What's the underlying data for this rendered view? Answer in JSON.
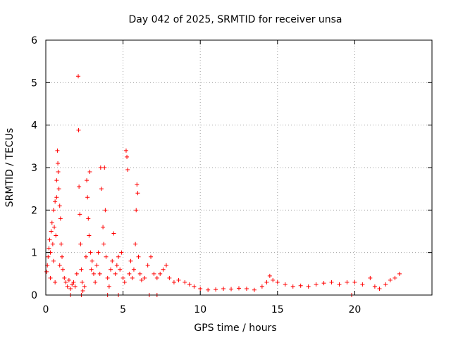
{
  "chart_data": {
    "type": "scatter",
    "title": "Day 042 of 2025, SRMTID for receiver unsa",
    "xlabel": "GPS time / hours",
    "ylabel": "SRMTID / TECUs",
    "xlim": [
      0,
      25
    ],
    "ylim": [
      0,
      6
    ],
    "xticks": [
      0,
      5,
      10,
      15,
      20
    ],
    "yticks": [
      0,
      1,
      2,
      3,
      4,
      5,
      6
    ],
    "grid": true,
    "marker": "+",
    "color": "#ff0000",
    "series": [
      {
        "name": "SRMTID",
        "points": [
          [
            0.05,
            0.55
          ],
          [
            0.1,
            0.7
          ],
          [
            0.15,
            0.9
          ],
          [
            0.2,
            1.1
          ],
          [
            0.25,
            1.3
          ],
          [
            0.3,
            1.0
          ],
          [
            0.35,
            1.5
          ],
          [
            0.4,
            1.7
          ],
          [
            0.45,
            1.2
          ],
          [
            0.5,
            2.0
          ],
          [
            0.55,
            1.6
          ],
          [
            0.6,
            2.2
          ],
          [
            0.65,
            1.4
          ],
          [
            0.7,
            2.3
          ],
          [
            0.7,
            2.7
          ],
          [
            0.75,
            3.4
          ],
          [
            0.78,
            3.1
          ],
          [
            0.8,
            2.9
          ],
          [
            0.85,
            2.5
          ],
          [
            0.9,
            2.1
          ],
          [
            0.95,
            1.8
          ],
          [
            1.0,
            1.2
          ],
          [
            1.05,
            0.9
          ],
          [
            1.1,
            0.6
          ],
          [
            0.3,
            0.4
          ],
          [
            0.5,
            0.8
          ],
          [
            0.6,
            0.3
          ],
          [
            0.9,
            0.7
          ],
          [
            1.2,
            0.4
          ],
          [
            1.3,
            0.3
          ],
          [
            1.4,
            0.2
          ],
          [
            1.5,
            0.35
          ],
          [
            1.6,
            0.15
          ],
          [
            1.7,
            0.25
          ],
          [
            1.8,
            0.3
          ],
          [
            1.9,
            0.2
          ],
          [
            2.0,
            0.5
          ],
          [
            2.1,
            5.15
          ],
          [
            2.12,
            3.88
          ],
          [
            2.15,
            2.55
          ],
          [
            2.2,
            1.9
          ],
          [
            2.25,
            1.2
          ],
          [
            2.3,
            0.6
          ],
          [
            2.35,
            0.3
          ],
          [
            2.4,
            0.1
          ],
          [
            2.5,
            0.2
          ],
          [
            2.6,
            0.9
          ],
          [
            2.65,
            2.7
          ],
          [
            2.7,
            2.3
          ],
          [
            2.75,
            1.8
          ],
          [
            2.8,
            1.4
          ],
          [
            2.85,
            2.9
          ],
          [
            2.9,
            1.0
          ],
          [
            2.95,
            0.6
          ],
          [
            3.0,
            0.8
          ],
          [
            3.1,
            0.5
          ],
          [
            3.2,
            0.3
          ],
          [
            3.3,
            0.7
          ],
          [
            3.4,
            1.0
          ],
          [
            3.5,
            0.5
          ],
          [
            3.55,
            3.0
          ],
          [
            3.6,
            2.5
          ],
          [
            3.7,
            1.6
          ],
          [
            3.75,
            1.2
          ],
          [
            3.8,
            3.0
          ],
          [
            3.85,
            2.0
          ],
          [
            3.9,
            0.9
          ],
          [
            4.0,
            0.4
          ],
          [
            4.1,
            0.2
          ],
          [
            4.2,
            0.6
          ],
          [
            4.3,
            0.8
          ],
          [
            4.4,
            1.45
          ],
          [
            4.5,
            0.5
          ],
          [
            4.6,
            0.7
          ],
          [
            4.7,
            0.9
          ],
          [
            4.8,
            0.6
          ],
          [
            4.9,
            1.0
          ],
          [
            5.0,
            0.4
          ],
          [
            5.1,
            0.3
          ],
          [
            5.2,
            3.4
          ],
          [
            5.25,
            3.25
          ],
          [
            5.3,
            2.95
          ],
          [
            5.4,
            0.5
          ],
          [
            5.5,
            0.8
          ],
          [
            5.6,
            0.4
          ],
          [
            5.7,
            0.6
          ],
          [
            5.8,
            1.2
          ],
          [
            5.85,
            2.0
          ],
          [
            5.9,
            2.6
          ],
          [
            5.95,
            2.4
          ],
          [
            6.0,
            0.9
          ],
          [
            6.1,
            0.5
          ],
          [
            6.2,
            0.35
          ],
          [
            6.4,
            0.4
          ],
          [
            6.6,
            0.7
          ],
          [
            6.8,
            0.9
          ],
          [
            7.0,
            0.5
          ],
          [
            7.2,
            0.4
          ],
          [
            7.4,
            0.5
          ],
          [
            7.6,
            0.6
          ],
          [
            7.8,
            0.7
          ],
          [
            8.0,
            0.4
          ],
          [
            8.3,
            0.3
          ],
          [
            8.6,
            0.35
          ],
          [
            9.0,
            0.3
          ],
          [
            9.3,
            0.25
          ],
          [
            9.6,
            0.2
          ],
          [
            10.0,
            0.15
          ],
          [
            10.5,
            0.12
          ],
          [
            11.0,
            0.13
          ],
          [
            11.5,
            0.15
          ],
          [
            12.0,
            0.14
          ],
          [
            12.5,
            0.16
          ],
          [
            13.0,
            0.15
          ],
          [
            13.5,
            0.12
          ],
          [
            14.0,
            0.2
          ],
          [
            14.3,
            0.3
          ],
          [
            14.5,
            0.45
          ],
          [
            14.7,
            0.35
          ],
          [
            15.0,
            0.3
          ],
          [
            15.5,
            0.25
          ],
          [
            16.0,
            0.2
          ],
          [
            16.5,
            0.22
          ],
          [
            17.0,
            0.2
          ],
          [
            17.5,
            0.25
          ],
          [
            18.0,
            0.28
          ],
          [
            18.5,
            0.3
          ],
          [
            19.0,
            0.25
          ],
          [
            19.5,
            0.3
          ],
          [
            20.0,
            0.3
          ],
          [
            20.5,
            0.25
          ],
          [
            21.0,
            0.4
          ],
          [
            21.3,
            0.2
          ],
          [
            21.6,
            0.15
          ],
          [
            22.0,
            0.25
          ],
          [
            22.3,
            0.35
          ],
          [
            22.6,
            0.4
          ],
          [
            22.9,
            0.5
          ],
          [
            4.7,
            0.0
          ],
          [
            6.7,
            0.0
          ],
          [
            7.2,
            0.0
          ],
          [
            19.8,
            0.0
          ],
          [
            1.6,
            0.0
          ],
          [
            2.3,
            0.0
          ],
          [
            4.0,
            0.0
          ]
        ]
      }
    ]
  }
}
